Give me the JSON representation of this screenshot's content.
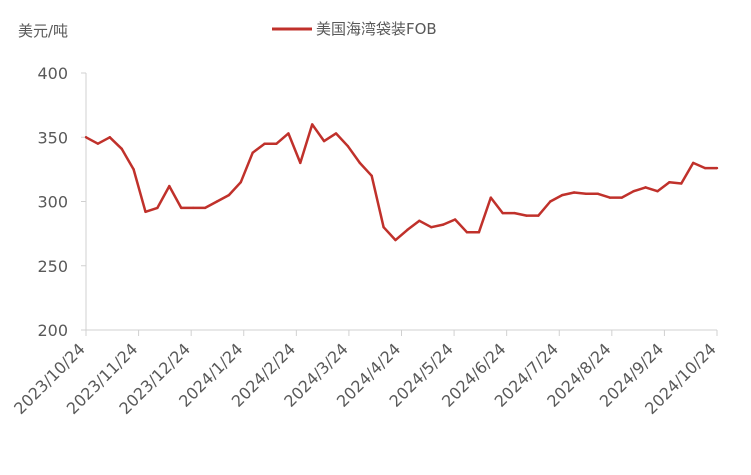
{
  "chart_data": {
    "type": "line",
    "ylabel": "美元/吨",
    "ylim": [
      200,
      400
    ],
    "yticks": [
      200,
      250,
      300,
      350,
      400
    ],
    "grid": false,
    "legend_position": "top",
    "xtick_labels": [
      "2023/10/24",
      "2023/11/24",
      "2023/12/24",
      "2024/1/24",
      "2024/2/24",
      "2024/3/24",
      "2024/4/24",
      "2024/5/24",
      "2024/6/24",
      "2024/7/24",
      "2024/8/24",
      "2024/9/24",
      "2024/10/24"
    ],
    "series": [
      {
        "name": "美国海湾袋装FOB",
        "color": "#c0312b",
        "values": [
          350,
          345,
          350,
          341,
          325,
          292,
          295,
          312,
          295,
          295,
          295,
          300,
          305,
          315,
          338,
          345,
          345,
          353,
          330,
          360,
          347,
          353,
          343,
          330,
          320,
          280,
          270,
          278,
          285,
          280,
          282,
          286,
          276,
          276,
          303,
          291,
          291,
          289,
          289,
          300,
          305,
          307,
          306,
          306,
          303,
          303,
          308,
          311,
          308,
          315,
          314,
          330,
          326,
          326
        ]
      }
    ]
  }
}
